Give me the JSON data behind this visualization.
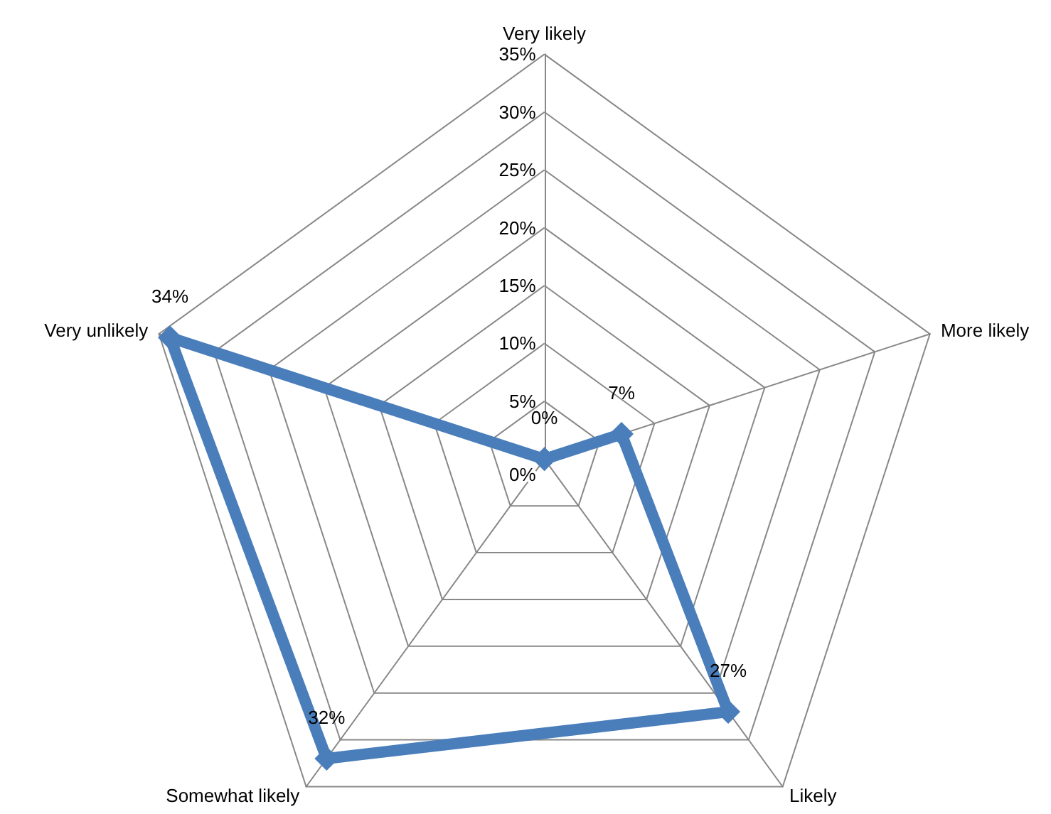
{
  "chart_data": {
    "type": "radar",
    "categories": [
      "Very likely",
      "More likely",
      "Likely",
      "Somewhat likely",
      "Very unlikely"
    ],
    "series": [
      {
        "color": "#4a7ebb",
        "values": [
          0,
          7,
          27,
          32,
          34
        ],
        "value_labels": [
          "0%",
          "7%",
          "27%",
          "32%",
          "34%"
        ]
      }
    ],
    "ylim": [
      0,
      35
    ],
    "yticks": [
      {
        "value": 0,
        "label": "0%"
      },
      {
        "value": 5,
        "label": "5%"
      },
      {
        "value": 10,
        "label": "10%"
      },
      {
        "value": 15,
        "label": "15%"
      },
      {
        "value": 20,
        "label": "20%"
      },
      {
        "value": 25,
        "label": "25%"
      },
      {
        "value": 30,
        "label": "30%"
      },
      {
        "value": 35,
        "label": "35%"
      }
    ],
    "grid": true,
    "marker": "diamond",
    "line_style": "solid"
  }
}
